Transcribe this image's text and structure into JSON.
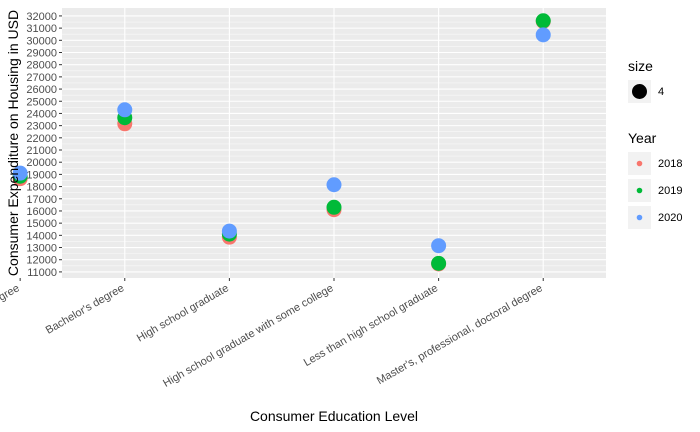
{
  "chart_data": {
    "type": "scatter",
    "xlabel": "Consumer Education Level",
    "ylabel": "Consumer Expenditure on Housing in USD",
    "categories": [
      "Associate's degree",
      "Bachelor's degree",
      "High school graduate",
      "High school graduate with some college",
      "Less than high school graduate",
      "Master's, professional, doctoral degree"
    ],
    "series": [
      {
        "name": "2018",
        "color": "#F8766D",
        "values": [
          18650,
          23150,
          13850,
          16100,
          11650,
          31550
        ]
      },
      {
        "name": "2019",
        "color": "#00BA38",
        "values": [
          18850,
          23650,
          14100,
          16300,
          11700,
          31600
        ]
      },
      {
        "name": "2020",
        "color": "#619CFF",
        "values": [
          19100,
          24300,
          14350,
          18150,
          13150,
          30450
        ]
      }
    ],
    "ylim": [
      10500,
      32650
    ],
    "yticks": [
      11000,
      12000,
      13000,
      14000,
      15000,
      16000,
      17000,
      18000,
      19000,
      20000,
      21000,
      22000,
      23000,
      24000,
      25000,
      26000,
      27000,
      28000,
      29000,
      30000,
      31000,
      32000
    ],
    "grid": true,
    "legend_placement": "right",
    "legends": {
      "size": {
        "title": "size",
        "entries": [
          "4"
        ]
      },
      "color": {
        "title": "Year",
        "entries": [
          "2018",
          "2019",
          "2020"
        ]
      }
    }
  }
}
